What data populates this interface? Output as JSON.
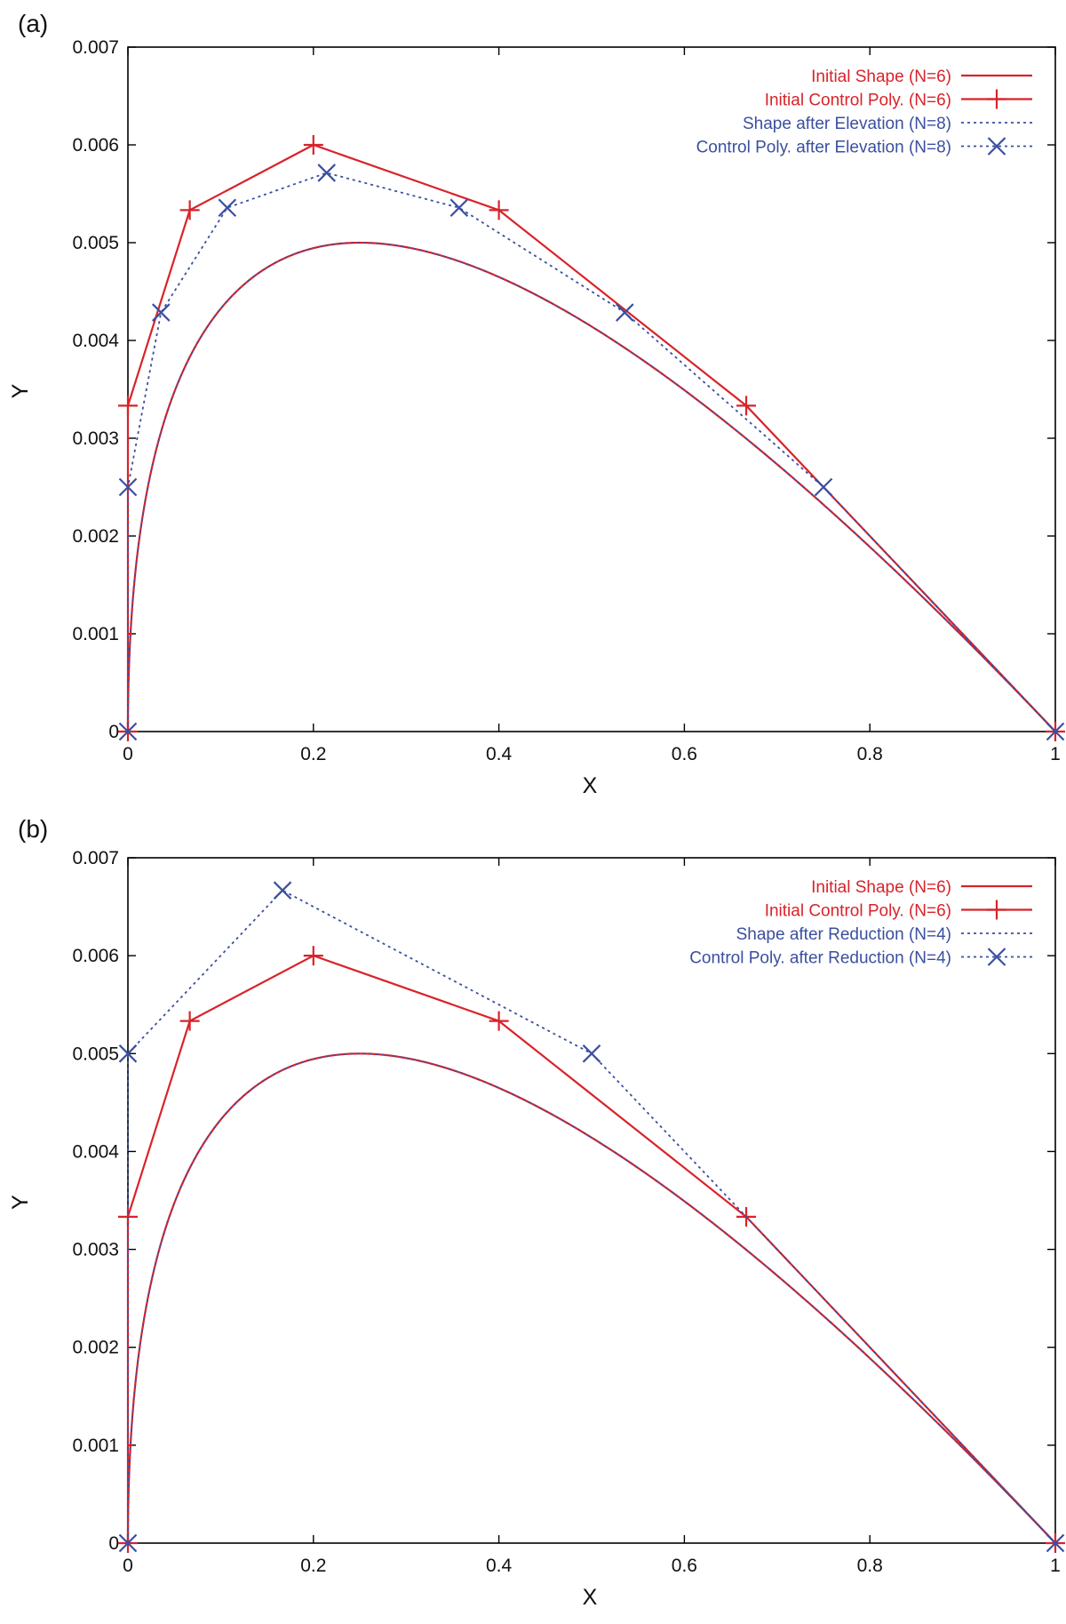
{
  "colors": {
    "initial": "#d8232a",
    "modified": "#3a4fa0",
    "axis": "#000000"
  },
  "chart_data": [
    {
      "type": "line",
      "panel_label": "(a)",
      "xlabel": "X",
      "ylabel": "Y",
      "xlim": [
        0,
        1
      ],
      "ylim": [
        0,
        0.007
      ],
      "xticks": [
        "0",
        "0.2",
        "0.4",
        "0.6",
        "0.8",
        "1"
      ],
      "yticks": [
        "0",
        "0.001",
        "0.002",
        "0.003",
        "0.004",
        "0.005",
        "0.006",
        "0.007"
      ],
      "legend_position": "top-right",
      "shape_thickness": 0.04,
      "series": [
        {
          "name": "Initial Shape (N=6)",
          "style": "solid",
          "marker": "none",
          "color_key": "initial",
          "kind": "shape"
        },
        {
          "name": "Initial Control Poly. (N=6)",
          "style": "solid",
          "marker": "plus",
          "color_key": "initial",
          "kind": "poly",
          "x": [
            0,
            0,
            0.0667,
            0.2,
            0.4,
            0.6667,
            1.0
          ],
          "y": [
            0,
            0.003333,
            0.005333,
            0.006,
            0.005333,
            0.003333,
            0
          ]
        },
        {
          "name": "Shape after Elevation (N=8)",
          "style": "dotted",
          "marker": "none",
          "color_key": "modified",
          "kind": "shape"
        },
        {
          "name": "Control Poly. after Elevation (N=8)",
          "style": "dotted",
          "marker": "cross",
          "color_key": "modified",
          "kind": "poly",
          "x": [
            0,
            0,
            0.0357,
            0.1071,
            0.2143,
            0.3571,
            0.5357,
            0.75,
            1.0
          ],
          "y": [
            0,
            0.0025,
            0.004286,
            0.005357,
            0.005714,
            0.005357,
            0.004286,
            0.0025,
            0
          ]
        }
      ]
    },
    {
      "type": "line",
      "panel_label": "(b)",
      "xlabel": "X",
      "ylabel": "Y",
      "xlim": [
        0,
        1
      ],
      "ylim": [
        0,
        0.007
      ],
      "xticks": [
        "0",
        "0.2",
        "0.4",
        "0.6",
        "0.8",
        "1"
      ],
      "yticks": [
        "0",
        "0.001",
        "0.002",
        "0.003",
        "0.004",
        "0.005",
        "0.006",
        "0.007"
      ],
      "legend_position": "top-right",
      "shape_thickness": 0.04,
      "series": [
        {
          "name": "Initial Shape (N=6)",
          "style": "solid",
          "marker": "none",
          "color_key": "initial",
          "kind": "shape"
        },
        {
          "name": "Initial Control Poly. (N=6)",
          "style": "solid",
          "marker": "plus",
          "color_key": "initial",
          "kind": "poly",
          "x": [
            0,
            0,
            0.0667,
            0.2,
            0.4,
            0.6667,
            1.0
          ],
          "y": [
            0,
            0.003333,
            0.005333,
            0.006,
            0.005333,
            0.003333,
            0
          ]
        },
        {
          "name": "Shape after Reduction (N=4)",
          "style": "dotted",
          "marker": "none",
          "color_key": "modified",
          "kind": "shape"
        },
        {
          "name": "Control Poly. after Reduction (N=4)",
          "style": "dotted",
          "marker": "cross",
          "color_key": "modified",
          "kind": "poly",
          "x": [
            0,
            0,
            0.1667,
            0.5,
            1.0
          ],
          "y": [
            0,
            0.005,
            0.006667,
            0.005,
            0
          ]
        }
      ]
    }
  ]
}
